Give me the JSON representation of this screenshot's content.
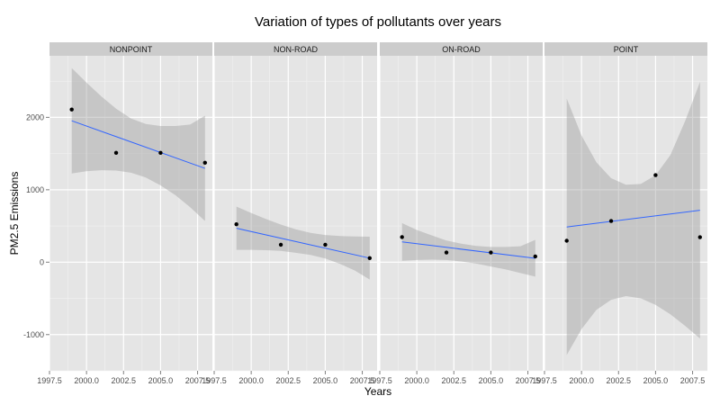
{
  "chart_data": {
    "type": "scatter",
    "title": "Variation of types of pollutants over years",
    "xlabel": "Years",
    "ylabel": "PM2.5 Emissions",
    "xlim": [
      1997.5,
      2008.5
    ],
    "ylim": [
      -1500,
      2850
    ],
    "x_ticks": [
      1997.5,
      2000.0,
      2002.5,
      2005.0,
      2007.5
    ],
    "x_tick_labels": [
      "1997.5",
      "2000.0",
      "2002.5",
      "2005.0",
      "2007.5"
    ],
    "y_ticks": [
      -1000,
      0,
      1000,
      2000
    ],
    "y_tick_labels": [
      "-1000",
      "0",
      "1000",
      "2000"
    ],
    "grid": true,
    "panel_background": "#e5e5e5",
    "strip_background": "#cccccc",
    "point_color": "#000000",
    "smooth_color": "#3366ff",
    "band_color": "#999999",
    "panels": [
      {
        "label": "NONPOINT",
        "points": [
          {
            "x": 1999,
            "y": 2108
          },
          {
            "x": 2002,
            "y": 1510
          },
          {
            "x": 2005,
            "y": 1510
          },
          {
            "x": 2008,
            "y": 1373
          }
        ],
        "fit": {
          "x": [
            1999,
            2008
          ],
          "y": [
            1953,
            1296
          ]
        },
        "band": {
          "x": [
            1999,
            2000,
            2001,
            2002,
            2003,
            2004,
            2005,
            2006,
            2007,
            2008
          ],
          "lower": [
            1225,
            1255,
            1270,
            1265,
            1235,
            1170,
            1060,
            925,
            760,
            568
          ],
          "upper": [
            2681,
            2480,
            2290,
            2120,
            1985,
            1908,
            1880,
            1880,
            1900,
            2024
          ]
        }
      },
      {
        "label": "NON-ROAD",
        "points": [
          {
            "x": 1999,
            "y": 523
          },
          {
            "x": 2002,
            "y": 241
          },
          {
            "x": 2005,
            "y": 241
          },
          {
            "x": 2008,
            "y": 56
          }
        ],
        "fit": {
          "x": [
            1999,
            2008
          ],
          "y": [
            469,
            56
          ]
        },
        "band": {
          "x": [
            1999,
            2000,
            2001,
            2002,
            2003,
            2004,
            2005,
            2006,
            2007,
            2008
          ],
          "lower": [
            170,
            170,
            165,
            155,
            130,
            100,
            50,
            -25,
            -115,
            -240
          ],
          "upper": [
            768,
            680,
            595,
            520,
            455,
            405,
            375,
            360,
            355,
            352
          ]
        }
      },
      {
        "label": "ON-ROAD",
        "points": [
          {
            "x": 1999,
            "y": 347
          },
          {
            "x": 2002,
            "y": 134
          },
          {
            "x": 2005,
            "y": 134
          },
          {
            "x": 2008,
            "y": 79
          }
        ],
        "fit": {
          "x": [
            1999,
            2008
          ],
          "y": [
            280,
            54
          ]
        },
        "band": {
          "x": [
            1999,
            2000,
            2001,
            2002,
            2003,
            2004,
            2005,
            2006,
            2007,
            2008
          ],
          "lower": [
            20,
            30,
            35,
            30,
            10,
            -20,
            -60,
            -100,
            -150,
            -200
          ],
          "upper": [
            540,
            445,
            370,
            300,
            255,
            225,
            210,
            210,
            220,
            308
          ]
        }
      },
      {
        "label": "POINT",
        "points": [
          {
            "x": 1999,
            "y": 296
          },
          {
            "x": 2002,
            "y": 568
          },
          {
            "x": 2005,
            "y": 1202
          },
          {
            "x": 2008,
            "y": 345
          }
        ],
        "fit": {
          "x": [
            1999,
            2008
          ],
          "y": [
            486,
            717
          ]
        },
        "band": {
          "x": [
            1999,
            2000,
            2001,
            2002,
            2003,
            2004,
            2005,
            2006,
            2007,
            2008
          ],
          "lower": [
            -1283,
            -925,
            -660,
            -520,
            -468,
            -500,
            -590,
            -720,
            -880,
            -1054
          ],
          "upper": [
            2260,
            1750,
            1380,
            1160,
            1070,
            1080,
            1200,
            1480,
            1950,
            2490
          ]
        }
      }
    ]
  }
}
